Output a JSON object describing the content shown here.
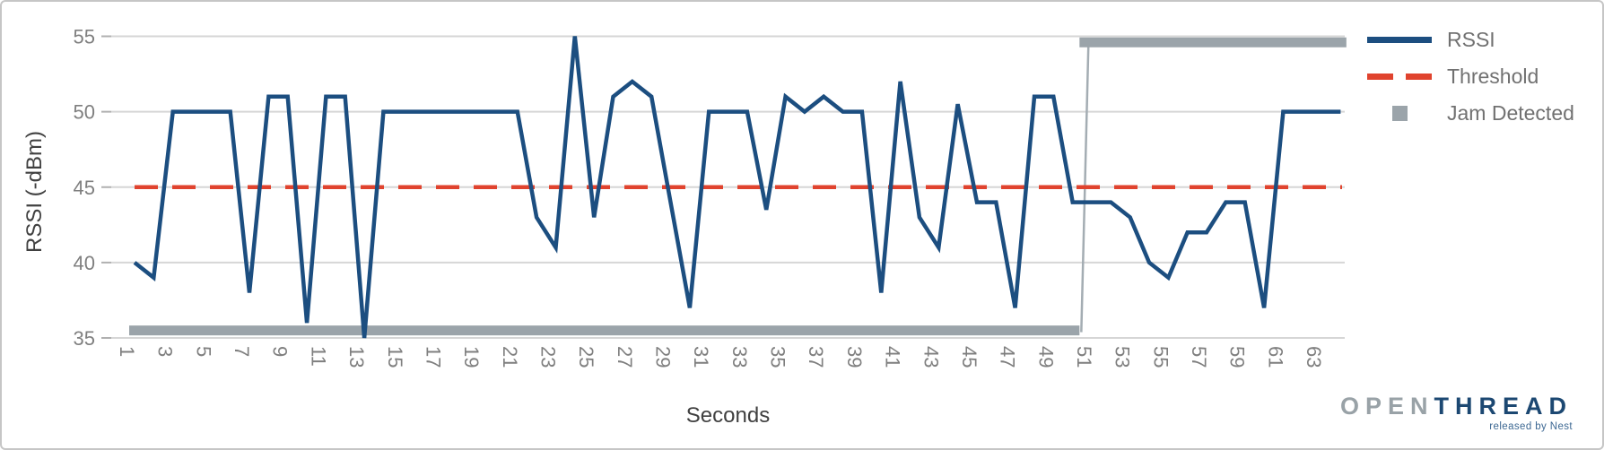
{
  "colors": {
    "rssi_blue": "#1c4e80",
    "threshold_red": "#e0432e",
    "jam_gray": "#9ba4aa",
    "jam_connector_gray": "#a4adb3",
    "gridline": "#d6d6d6",
    "tick_stub": "#b0b0b0",
    "tick_label": "#7f7f7f",
    "axis_title": "#404040",
    "legend_text": "#717171"
  },
  "chart_data": {
    "type": "line",
    "title": "",
    "xlabel": "Seconds",
    "ylabel": "RSSI (-dBm)",
    "ylim": [
      35,
      55
    ],
    "grid": "horizontal",
    "legend_position": "right",
    "x_start_second": 1,
    "x_ticks": [
      1,
      3,
      5,
      7,
      9,
      11,
      13,
      15,
      17,
      19,
      21,
      23,
      25,
      27,
      29,
      31,
      33,
      35,
      37,
      39,
      41,
      43,
      45,
      47,
      49,
      51,
      53,
      55,
      57,
      59,
      61,
      63
    ],
    "y_ticks": [
      35,
      40,
      45,
      50,
      55
    ],
    "series": [
      {
        "name": "RSSI",
        "type": "line",
        "style": "solid",
        "color": "#1c4e80",
        "values": [
          40,
          39,
          50,
          50,
          50,
          50,
          38,
          51,
          51,
          36,
          51,
          51,
          35,
          50,
          50,
          50,
          50,
          50,
          50,
          50,
          50,
          43,
          41,
          55,
          43,
          51,
          52,
          51,
          44,
          37,
          50,
          50,
          50,
          43.5,
          51,
          50,
          51,
          50,
          50,
          38,
          52,
          43,
          41,
          50.5,
          44,
          44,
          37,
          51,
          51,
          44,
          44,
          44,
          43,
          40,
          39,
          42,
          42,
          44,
          44,
          37,
          50,
          50,
          50,
          50
        ]
      },
      {
        "name": "Threshold",
        "type": "line",
        "style": "dashed",
        "color": "#e0432e",
        "value": 45
      },
      {
        "name": "Jam Detected",
        "type": "step-band",
        "color": "#9ba4aa",
        "no_jam_level": 35.5,
        "jam_level": 54.6,
        "jam_start_second": 51,
        "x_end_second": 64.3
      }
    ]
  },
  "legend": {
    "items": [
      {
        "label": "RSSI",
        "swatch": "line"
      },
      {
        "label": "Threshold",
        "swatch": "dashed-line"
      },
      {
        "label": "Jam Detected",
        "swatch": "square"
      }
    ]
  },
  "logo": {
    "part1": "OPEN",
    "part2": "THREAD",
    "tagline": "released by Nest"
  }
}
